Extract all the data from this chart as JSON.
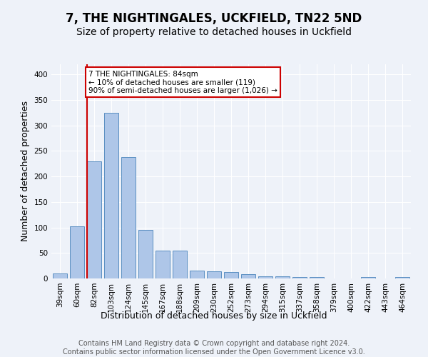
{
  "title": "7, THE NIGHTINGALES, UCKFIELD, TN22 5ND",
  "subtitle": "Size of property relative to detached houses in Uckfield",
  "xlabel": "Distribution of detached houses by size in Uckfield",
  "ylabel": "Number of detached properties",
  "categories": [
    "39sqm",
    "60sqm",
    "82sqm",
    "103sqm",
    "124sqm",
    "145sqm",
    "167sqm",
    "188sqm",
    "209sqm",
    "230sqm",
    "252sqm",
    "273sqm",
    "294sqm",
    "315sqm",
    "337sqm",
    "358sqm",
    "379sqm",
    "400sqm",
    "422sqm",
    "443sqm",
    "464sqm"
  ],
  "values": [
    10,
    102,
    230,
    325,
    238,
    95,
    54,
    54,
    15,
    14,
    12,
    8,
    4,
    4,
    3,
    3,
    0,
    0,
    3,
    0,
    3
  ],
  "bar_color": "#aec6e8",
  "bar_edge_color": "#5a8fc2",
  "annotation_box_text": "7 THE NIGHTINGALES: 84sqm\n← 10% of detached houses are smaller (119)\n90% of semi-detached houses are larger (1,026) →",
  "annotation_box_color": "#ffffff",
  "annotation_box_edge_color": "#cc0000",
  "vline_color": "#cc0000",
  "vline_x_index": 2,
  "ylim": [
    0,
    420
  ],
  "yticks": [
    0,
    50,
    100,
    150,
    200,
    250,
    300,
    350,
    400
  ],
  "footer_line1": "Contains HM Land Registry data © Crown copyright and database right 2024.",
  "footer_line2": "Contains public sector information licensed under the Open Government Licence v3.0.",
  "background_color": "#eef2f9",
  "plot_bg_color": "#eef2f9",
  "title_fontsize": 12,
  "subtitle_fontsize": 10,
  "label_fontsize": 9,
  "tick_fontsize": 7.5,
  "footer_fontsize": 7
}
